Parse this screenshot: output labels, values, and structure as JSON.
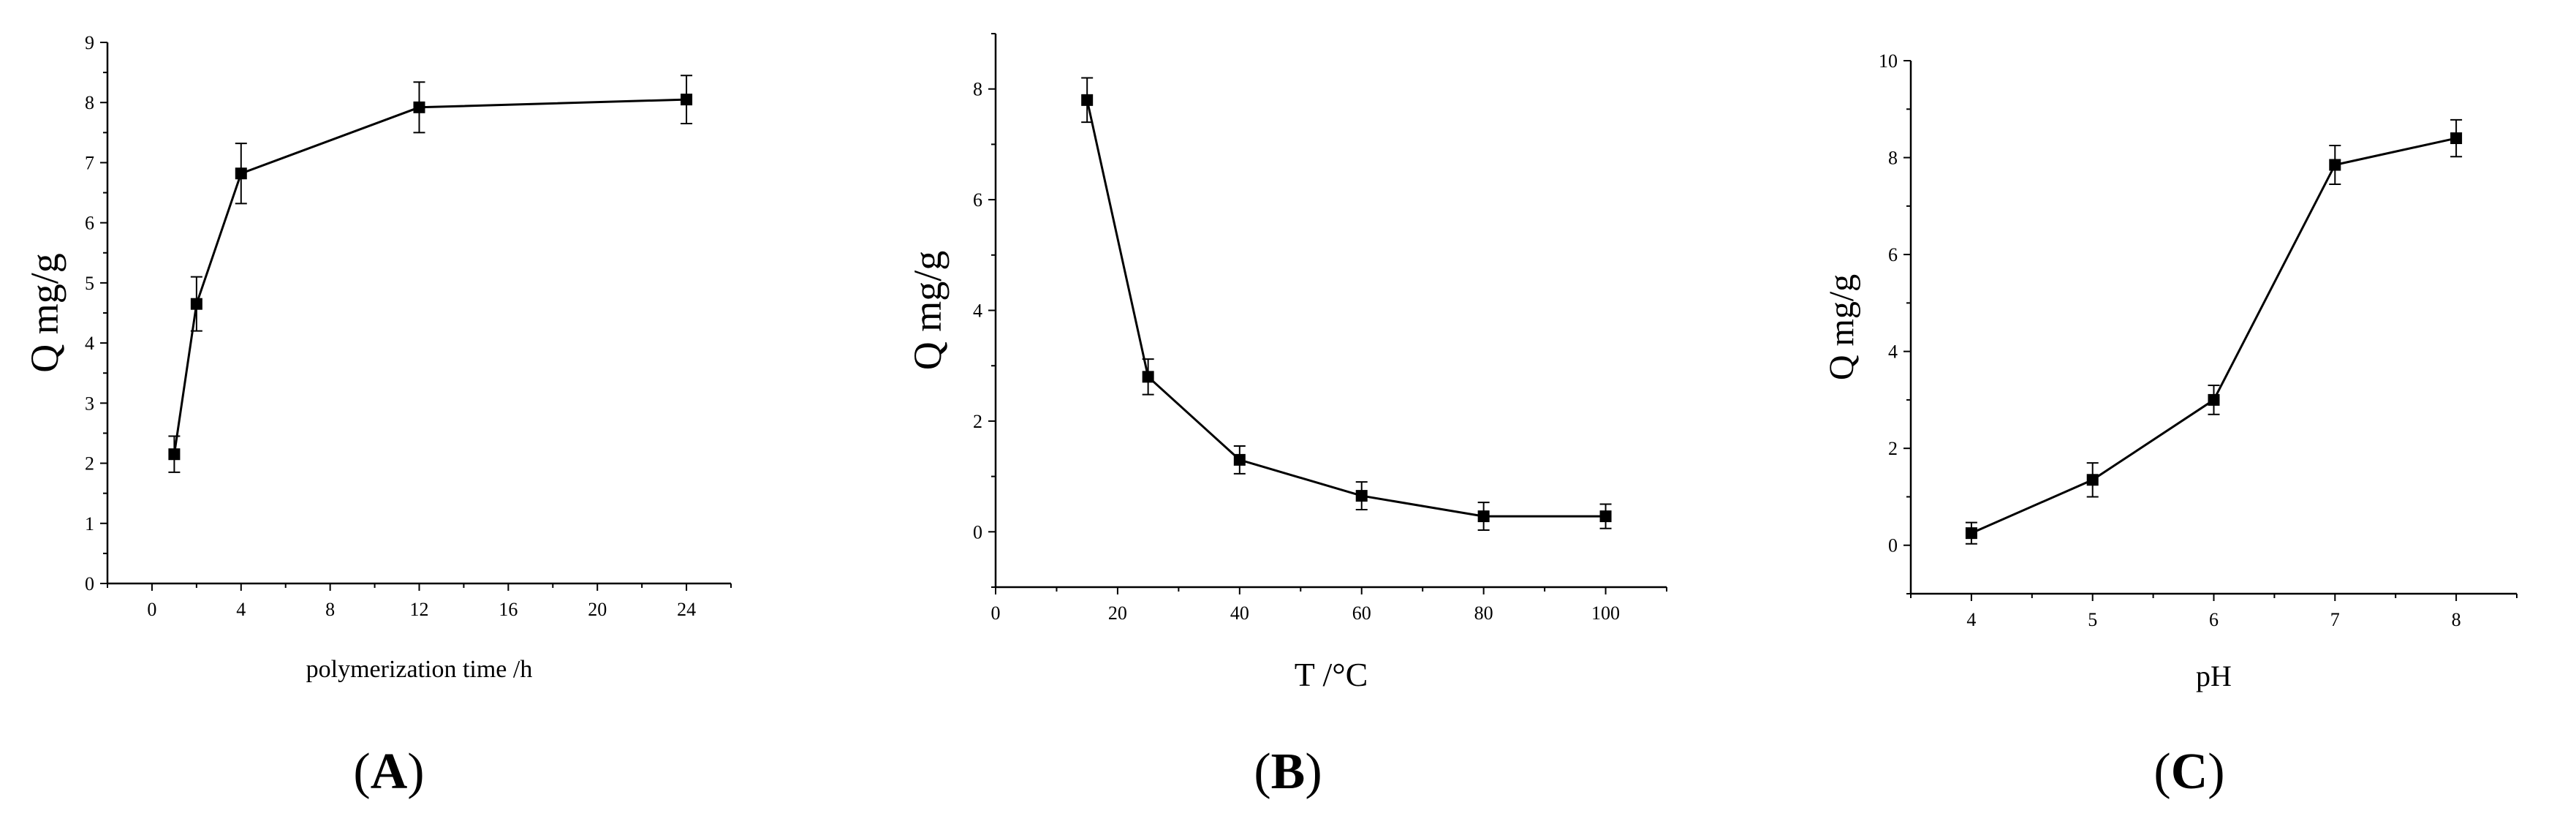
{
  "chart_data": [
    {
      "type": "line",
      "panel_label": "A",
      "xlabel": "polymerization time /h",
      "ylabel": "Q mg/g",
      "xlim": [
        -2,
        26
      ],
      "ylim": [
        0,
        9
      ],
      "xticks": [
        0,
        4,
        8,
        12,
        16,
        20,
        24
      ],
      "yticks": [
        0,
        1,
        2,
        3,
        4,
        5,
        6,
        7,
        8,
        9
      ],
      "series": [
        {
          "x": [
            1,
            2,
            4,
            12,
            24
          ],
          "y": [
            2.15,
            4.65,
            6.82,
            7.92,
            8.05
          ],
          "error": [
            0.3,
            0.45,
            0.5,
            0.42,
            0.4
          ]
        }
      ]
    },
    {
      "type": "line",
      "panel_label": "B",
      "xlabel": "T /°C",
      "ylabel": "Q mg/g",
      "xlim": [
        0,
        110
      ],
      "ylim": [
        -1,
        9
      ],
      "xticks": [
        0,
        20,
        40,
        60,
        80,
        100
      ],
      "yticks": [
        0,
        2,
        4,
        6,
        8
      ],
      "series": [
        {
          "x": [
            15,
            25,
            40,
            60,
            80,
            100
          ],
          "y": [
            7.8,
            2.8,
            1.3,
            0.65,
            0.28,
            0.28
          ],
          "error": [
            0.4,
            0.32,
            0.25,
            0.25,
            0.25,
            0.22
          ]
        }
      ]
    },
    {
      "type": "line",
      "panel_label": "C",
      "xlabel": "pH",
      "ylabel": "Q mg/g",
      "xlim": [
        3.5,
        8.5
      ],
      "ylim": [
        -1,
        10
      ],
      "xticks": [
        4,
        5,
        6,
        7,
        8
      ],
      "yticks": [
        0,
        2,
        4,
        6,
        8,
        10
      ],
      "series": [
        {
          "x": [
            4,
            5,
            6,
            7,
            8
          ],
          "y": [
            0.25,
            1.35,
            3.0,
            7.85,
            8.4
          ],
          "error": [
            0.22,
            0.35,
            0.3,
            0.4,
            0.38
          ]
        }
      ]
    }
  ]
}
